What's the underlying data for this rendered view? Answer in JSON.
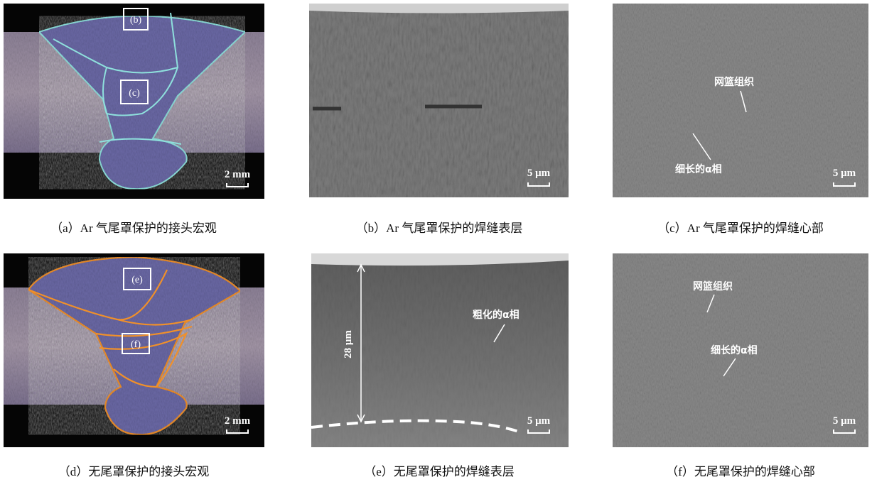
{
  "panels": [
    {
      "caption": "（a）Ar 气尾罩保护的接头宏观",
      "scale_bar": "2 mm",
      "markers": [
        "(b)",
        "(c)"
      ]
    },
    {
      "caption": "（b）Ar 气尾罩保护的焊缝表层",
      "scale_bar": "5 μm"
    },
    {
      "caption": "（c）Ar 气尾罩保护的焊缝心部",
      "scale_bar": "5 μm",
      "annotations": [
        "网篮组织",
        "细长的α相"
      ]
    },
    {
      "caption": "（d）无尾罩保护的接头宏观",
      "scale_bar": "2 mm",
      "markers": [
        "(e)",
        "(f)"
      ]
    },
    {
      "caption": "（e）无尾罩保护的焊缝表层",
      "scale_bar": "5 μm",
      "annotations": [
        "粗化的α相",
        "28 μm"
      ]
    },
    {
      "caption": "（f）无尾罩保护的焊缝心部",
      "scale_bar": "5 μm",
      "annotations": [
        "网篮组织",
        "细长的α相"
      ]
    }
  ]
}
